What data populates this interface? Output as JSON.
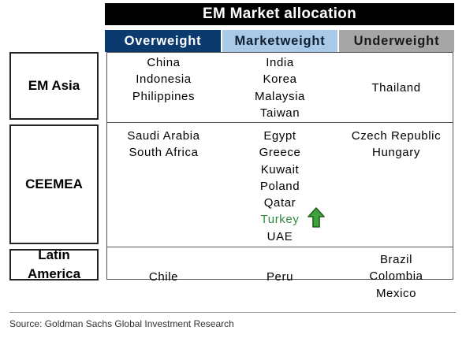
{
  "title": "EM Market allocation",
  "columns": {
    "overweight": "Overweight",
    "marketweight": "Marketweight",
    "underweight": "Underweight"
  },
  "regions": {
    "asia": {
      "label": "EM Asia",
      "overweight": [
        "China",
        "Indonesia",
        "Philippines"
      ],
      "marketweight": [
        "India",
        "Korea",
        "Malaysia",
        "Taiwan"
      ],
      "underweight": [
        "Thailand"
      ]
    },
    "ceemea": {
      "label": "CEEMEA",
      "overweight": [
        "Saudi Arabia",
        "South Africa"
      ],
      "marketweight": [
        "Egypt",
        "Greece",
        "Kuwait",
        "Poland",
        "Qatar",
        "Turkey",
        "UAE"
      ],
      "underweight": [
        "Czech Republic",
        "Hungary"
      ]
    },
    "latam": {
      "label_line1": "Latin",
      "label_line2": "America",
      "overweight": [
        "Chile"
      ],
      "marketweight": [
        "Peru"
      ],
      "underweight": [
        "Brazil",
        "Colombia",
        "Mexico"
      ]
    }
  },
  "highlight": {
    "country": "Turkey",
    "color": "#2e8b3a",
    "icon": "up-arrow-icon"
  },
  "source": "Source: Goldman Sachs Global Investment Research"
}
